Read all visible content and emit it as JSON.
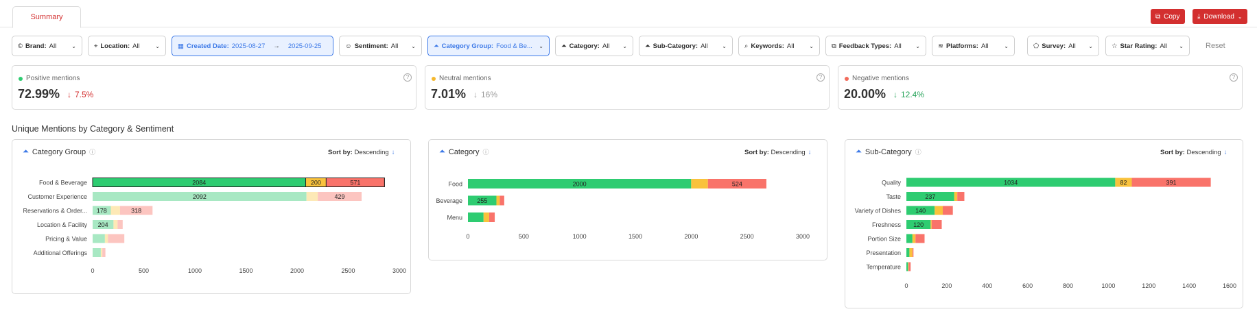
{
  "tab": {
    "label": "Summary"
  },
  "actions": {
    "copy_label": "Copy",
    "download_label": "Download"
  },
  "filters": [
    {
      "key": "Brand:",
      "value": "All",
      "icon": "brand-icon"
    },
    {
      "key": "Location:",
      "value": "All",
      "icon": "location-pin-icon"
    },
    {
      "key": "Created Date:",
      "value": "2025-08-27",
      "value2": "2025-09-25",
      "icon": "calendar-icon"
    },
    {
      "key": "Sentiment:",
      "value": "All",
      "icon": "smiley-icon"
    },
    {
      "key": "Category Group:",
      "value": "Food & Be...",
      "icon": "category-group-icon"
    },
    {
      "key": "Category:",
      "value": "All",
      "icon": "category-icon"
    },
    {
      "key": "Sub-Category:",
      "value": "All",
      "icon": "sub-category-icon"
    },
    {
      "key": "Keywords:",
      "value": "All",
      "icon": "keyword-search-icon"
    },
    {
      "key": "Feedback Types:",
      "value": "All",
      "icon": "external-link-icon"
    },
    {
      "key": "Platforms:",
      "value": "All",
      "icon": "layers-icon"
    },
    {
      "key": "Survey:",
      "value": "All",
      "icon": "survey-icon"
    },
    {
      "key": "Star Rating:",
      "value": "All",
      "icon": "star-icon"
    }
  ],
  "reset_label": "Reset",
  "metrics": [
    {
      "label": "Positive mentions",
      "value": "72.99%",
      "change": "7.5%",
      "direction": "down",
      "dot_color": "#2ecc71",
      "change_color": "#d32f2f"
    },
    {
      "label": "Neutral mentions",
      "value": "7.01%",
      "change": "16%",
      "direction": "down",
      "dot_color": "#f5b82e",
      "change_color": "#999999"
    },
    {
      "label": "Negative mentions",
      "value": "20.00%",
      "change": "12.4%",
      "direction": "down",
      "dot_color": "#f26b5b",
      "change_color": "#27a35a"
    }
  ],
  "section_title": "Unique Mentions by Category & Sentiment",
  "sort_label": "Sort by:",
  "sort_value": "Descending",
  "colors": {
    "positive": "#2ecc71",
    "neutral": "#f9c23c",
    "negative": "#f9736a",
    "positive_dim": "#a8e8c3",
    "neutral_dim": "#fde9b6",
    "negative_dim": "#fcc5c0"
  },
  "chart_data": [
    {
      "type": "bar",
      "title": "Category Group",
      "orientation": "horizontal-stacked",
      "categories": [
        "Food & Beverage",
        "Customer Experience",
        "Reservations & Order...",
        "Location & Facility",
        "Pricing & Value",
        "Additional Offerings"
      ],
      "series": [
        {
          "values": [
            2084,
            2092,
            178,
            204,
            120,
            80
          ]
        },
        {
          "values": [
            200,
            110,
            90,
            40,
            30,
            15
          ]
        },
        {
          "values": [
            571,
            429,
            318,
            50,
            160,
            30
          ]
        }
      ],
      "data_labels": [
        [
          "2084",
          "200",
          "571"
        ],
        [
          "2092",
          "",
          "429"
        ],
        [
          "178",
          "",
          "318"
        ],
        [
          "204",
          "",
          ""
        ],
        [
          "",
          "",
          ""
        ],
        [
          "",
          "",
          ""
        ]
      ],
      "highlighted": [
        true,
        false,
        false,
        false,
        false,
        false
      ],
      "xticks": [
        0,
        500,
        1000,
        1500,
        2000,
        2500,
        3000
      ],
      "xlim": [
        0,
        3000
      ]
    },
    {
      "type": "bar",
      "title": "Category",
      "orientation": "horizontal-stacked",
      "categories": [
        "Food",
        "Beverage",
        "Menu"
      ],
      "series": [
        {
          "values": [
            2000,
            255,
            140
          ]
        },
        {
          "values": [
            150,
            30,
            50
          ]
        },
        {
          "values": [
            524,
            40,
            50
          ]
        }
      ],
      "data_labels": [
        [
          "2000",
          "",
          "524"
        ],
        [
          "255",
          "",
          ""
        ],
        [
          "",
          "",
          ""
        ]
      ],
      "highlighted": [
        true,
        true,
        true
      ],
      "xticks": [
        0,
        500,
        1000,
        1500,
        2000,
        2500,
        3000
      ],
      "xlim": [
        0,
        3000
      ]
    },
    {
      "type": "bar",
      "title": "Sub-Category",
      "orientation": "horizontal-stacked",
      "categories": [
        "Quality",
        "Taste",
        "Variety of Dishes",
        "Freshness",
        "Portion Size",
        "Presentation",
        "Temperature"
      ],
      "series": [
        {
          "values": [
            1034,
            237,
            140,
            120,
            30,
            15,
            8
          ]
        },
        {
          "values": [
            82,
            15,
            40,
            5,
            15,
            15,
            3
          ]
        },
        {
          "values": [
            391,
            35,
            50,
            50,
            45,
            5,
            10
          ]
        }
      ],
      "data_labels": [
        [
          "1034",
          "82",
          "391"
        ],
        [
          "237",
          "",
          ""
        ],
        [
          "140",
          "",
          ""
        ],
        [
          "120",
          "",
          ""
        ],
        [
          "",
          "",
          ""
        ],
        [
          "",
          "",
          ""
        ],
        [
          "",
          "",
          ""
        ]
      ],
      "highlighted": [
        true,
        true,
        true,
        true,
        true,
        true,
        true
      ],
      "xticks": [
        0,
        200,
        400,
        600,
        800,
        1000,
        1200,
        1400,
        1600
      ],
      "xlim": [
        0,
        1600
      ]
    }
  ]
}
